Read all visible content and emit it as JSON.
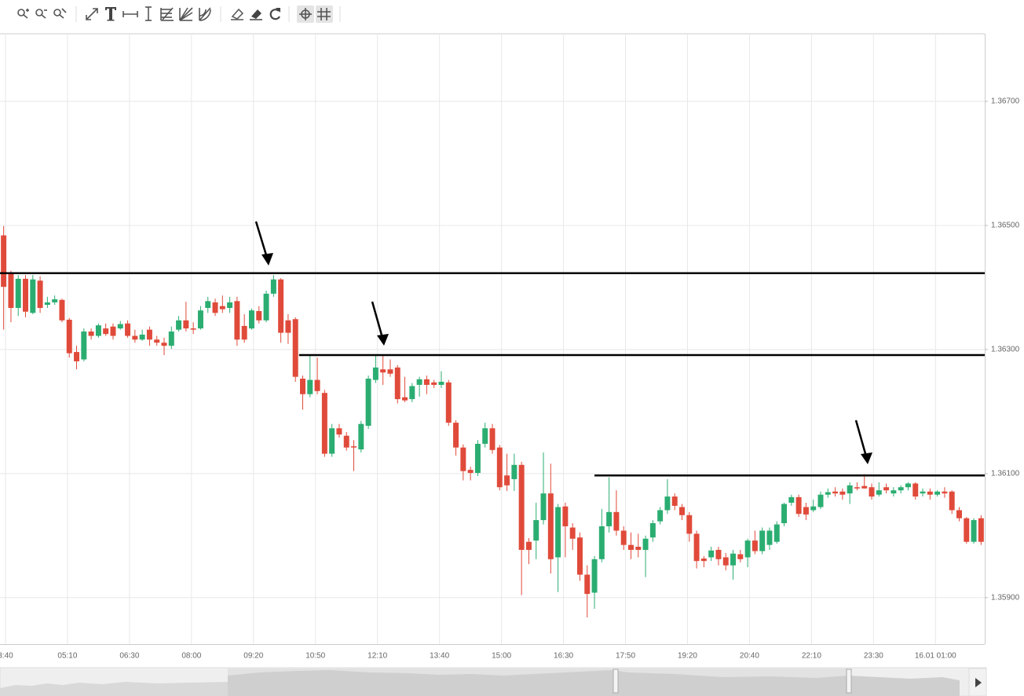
{
  "chart_data": {
    "type": "candlestick",
    "up_color": "#2bad71",
    "down_color": "#e04a3a",
    "grid": true,
    "xlim": [
      -0.5,
      134.5
    ],
    "xticks": [
      {
        "value": 0.25,
        "label": "3:40"
      },
      {
        "value": 8.75,
        "label": "05:10"
      },
      {
        "value": 17.25,
        "label": "06:30"
      },
      {
        "value": 25.75,
        "label": "08:00"
      },
      {
        "value": 34.25,
        "label": "09:20"
      },
      {
        "value": 42.75,
        "label": "10:50"
      },
      {
        "value": 51.25,
        "label": "12:10"
      },
      {
        "value": 59.75,
        "label": "13:40"
      },
      {
        "value": 68.25,
        "label": "15:00"
      },
      {
        "value": 76.75,
        "label": "16:30"
      },
      {
        "value": 85.25,
        "label": "17:50"
      },
      {
        "value": 93.75,
        "label": "19:20"
      },
      {
        "value": 102.25,
        "label": "20:40"
      },
      {
        "value": 110.75,
        "label": "22:10"
      },
      {
        "value": 119.25,
        "label": "23:30"
      },
      {
        "value": 127.75,
        "label": "16.01 01:00"
      }
    ],
    "ylim": [
      1.35825,
      1.36809
    ],
    "yticks": [
      {
        "value": 1.367,
        "label": "1.36700"
      },
      {
        "value": 1.365,
        "label": "1.36500"
      },
      {
        "value": 1.363,
        "label": "1.36300"
      },
      {
        "value": 1.361,
        "label": "1.36100"
      },
      {
        "value": 1.359,
        "label": "1.35900"
      }
    ],
    "open": [
      1.36484,
      1.36423,
      1.36367,
      1.36414,
      1.36359,
      1.36411,
      1.36372,
      1.36376,
      1.3638,
      1.36348,
      1.36296,
      1.36284,
      1.36329,
      1.36322,
      1.36334,
      1.36337,
      1.36334,
      1.36342,
      1.36322,
      1.36316,
      1.36332,
      1.36316,
      1.36311,
      1.36306,
      1.36332,
      1.36347,
      1.36334,
      1.36334,
      1.36367,
      1.36376,
      1.3637,
      1.36367,
      1.36378,
      1.36338,
      1.36334,
      1.36362,
      1.36347,
      1.3639,
      1.36413,
      1.36347,
      1.36349,
      1.36253,
      1.36228,
      1.36251,
      1.3623,
      1.36132,
      1.36173,
      1.36161,
      1.36144,
      1.36139,
      1.36177,
      1.36251,
      1.36268,
      1.36268,
      1.36271,
      1.36223,
      1.3622,
      1.36243,
      1.36252,
      1.36247,
      1.36243,
      1.36247,
      1.36182,
      1.36142,
      1.36106,
      1.36101,
      1.36148,
      1.36173,
      1.36142,
      1.36097,
      1.36091,
      1.36114,
      1.3599,
      1.35992,
      1.36025,
      1.36068,
      1.35965,
      1.36047,
      1.36013,
      1.35997,
      1.35937,
      1.35908,
      1.35962,
      1.36015,
      1.36038,
      1.36008,
      1.35985,
      1.35982,
      1.35977,
      1.35997,
      1.36023,
      1.36041,
      1.36063,
      1.36046,
      1.36033,
      1.36003,
      1.35963,
      1.35965,
      1.35977,
      1.35965,
      1.35952,
      1.3597,
      1.35965,
      1.35992,
      1.35975,
      1.35985,
      1.3599,
      1.3602,
      1.36053,
      1.36062,
      1.36046,
      1.36041,
      1.36046,
      1.36066,
      1.36071,
      1.36071,
      1.36068,
      1.36078,
      1.3608,
      1.36078,
      1.36066,
      1.36078,
      1.36068,
      1.36073,
      1.36078,
      1.36084,
      1.36068,
      1.36071,
      1.36066,
      1.36071,
      1.36071,
      1.36041,
      1.36028,
      1.3599,
      1.36028
    ],
    "high": [
      1.36499,
      1.36427,
      1.3642,
      1.3642,
      1.3642,
      1.36418,
      1.36385,
      1.36387,
      1.36382,
      1.36351,
      1.36306,
      1.36334,
      1.36334,
      1.36342,
      1.36342,
      1.36342,
      1.36346,
      1.36347,
      1.36332,
      1.36332,
      1.36337,
      1.36322,
      1.36319,
      1.36337,
      1.36354,
      1.36377,
      1.36344,
      1.3637,
      1.36385,
      1.36382,
      1.36387,
      1.36385,
      1.36385,
      1.36357,
      1.36366,
      1.3637,
      1.36395,
      1.3642,
      1.36415,
      1.36357,
      1.36352,
      1.36258,
      1.3629,
      1.36287,
      1.36235,
      1.3618,
      1.3618,
      1.36167,
      1.36154,
      1.36185,
      1.36258,
      1.36291,
      1.3629,
      1.36284,
      1.36275,
      1.36256,
      1.36246,
      1.36256,
      1.36258,
      1.36251,
      1.36265,
      1.36251,
      1.36186,
      1.36147,
      1.36111,
      1.36154,
      1.36182,
      1.3618,
      1.36146,
      1.36132,
      1.36132,
      1.36119,
      1.35996,
      1.36053,
      1.36134,
      1.36116,
      1.36051,
      1.36053,
      1.3602,
      1.36005,
      1.35952,
      1.35967,
      1.36043,
      1.36094,
      1.36073,
      1.36015,
      1.36005,
      1.36003,
      1.36,
      1.36025,
      1.36046,
      1.36091,
      1.36068,
      1.36051,
      1.36038,
      1.36008,
      1.35967,
      1.35982,
      1.35982,
      1.35972,
      1.35977,
      1.35977,
      1.35995,
      1.36008,
      1.36013,
      1.36013,
      1.36023,
      1.36053,
      1.36066,
      1.36066,
      1.36053,
      1.36058,
      1.36071,
      1.36076,
      1.36078,
      1.36076,
      1.36086,
      1.36086,
      1.36099,
      1.36084,
      1.36086,
      1.36084,
      1.36078,
      1.36081,
      1.36086,
      1.36086,
      1.36076,
      1.36076,
      1.36073,
      1.36078,
      1.36073,
      1.36046,
      1.3603,
      1.36028,
      1.36033
    ],
    "low": [
      1.36332,
      1.36344,
      1.36354,
      1.36352,
      1.36357,
      1.36359,
      1.36367,
      1.36372,
      1.36344,
      1.36287,
      1.36268,
      1.36281,
      1.36316,
      1.36319,
      1.36322,
      1.36316,
      1.36332,
      1.36319,
      1.36311,
      1.36314,
      1.36306,
      1.36306,
      1.36291,
      1.36301,
      1.36329,
      1.36329,
      1.36325,
      1.36332,
      1.36359,
      1.36354,
      1.36359,
      1.36359,
      1.36306,
      1.36311,
      1.36332,
      1.36342,
      1.36344,
      1.36385,
      1.36311,
      1.36309,
      1.36248,
      1.36203,
      1.36223,
      1.36228,
      1.36127,
      1.36127,
      1.36158,
      1.36137,
      1.36104,
      1.36134,
      1.36172,
      1.36246,
      1.36243,
      1.36256,
      1.36213,
      1.36215,
      1.36215,
      1.36224,
      1.36228,
      1.36238,
      1.36238,
      1.36177,
      1.36129,
      1.36089,
      1.36089,
      1.36096,
      1.36142,
      1.36132,
      1.36073,
      1.36072,
      1.36072,
      1.35904,
      1.35954,
      1.35962,
      1.36018,
      1.35939,
      1.35909,
      1.35965,
      1.35977,
      1.35927,
      1.35868,
      1.35882,
      1.35957,
      1.36005,
      1.36,
      1.35977,
      1.35962,
      1.35965,
      1.35933,
      1.3599,
      1.36018,
      1.36035,
      1.36041,
      1.36025,
      1.3599,
      1.35947,
      1.35949,
      1.35959,
      1.35952,
      1.35944,
      1.35929,
      1.35957,
      1.35949,
      1.3597,
      1.3597,
      1.35977,
      1.35987,
      1.36015,
      1.36048,
      1.3603,
      1.36025,
      1.36038,
      1.36043,
      1.36061,
      1.36063,
      1.36058,
      1.36051,
      1.36073,
      1.36076,
      1.36058,
      1.36063,
      1.36068,
      1.36063,
      1.36068,
      1.36073,
      1.36058,
      1.36063,
      1.36058,
      1.36063,
      1.36061,
      1.36035,
      1.36023,
      1.35987,
      1.35987,
      1.35985
    ],
    "close": [
      1.36401,
      1.36367,
      1.36414,
      1.36361,
      1.36413,
      1.36367,
      1.36376,
      1.36381,
      1.36347,
      1.36294,
      1.36281,
      1.36329,
      1.36322,
      1.36339,
      1.36325,
      1.36322,
      1.36341,
      1.36322,
      1.36316,
      1.36324,
      1.36316,
      1.36311,
      1.36306,
      1.36329,
      1.36347,
      1.36334,
      1.36332,
      1.36363,
      1.36378,
      1.36359,
      1.36365,
      1.36376,
      1.36316,
      1.36316,
      1.36363,
      1.36347,
      1.3639,
      1.36413,
      1.36327,
      1.36327,
      1.36256,
      1.36228,
      1.36251,
      1.36233,
      1.36132,
      1.36173,
      1.36163,
      1.36142,
      1.36142,
      1.3618,
      1.36253,
      1.36271,
      1.36263,
      1.36261,
      1.3622,
      1.36218,
      1.36241,
      1.36252,
      1.36243,
      1.36243,
      1.36248,
      1.36182,
      1.36142,
      1.36104,
      1.36101,
      1.36148,
      1.36173,
      1.36138,
      1.36078,
      1.36081,
      1.36114,
      1.35977,
      1.35977,
      1.36025,
      1.36068,
      1.35962,
      1.36046,
      1.36015,
      1.35995,
      1.35937,
      1.35906,
      1.35962,
      1.36015,
      1.36038,
      1.36008,
      1.35985,
      1.35977,
      1.35977,
      1.35995,
      1.3602,
      1.36041,
      1.36063,
      1.36048,
      1.36033,
      1.36003,
      1.35959,
      1.35959,
      1.35976,
      1.35962,
      1.35952,
      1.35971,
      1.35962,
      1.35992,
      1.35975,
      1.36008,
      1.36008,
      1.36018,
      1.36051,
      1.36062,
      1.36035,
      1.36034,
      1.36047,
      1.36066,
      1.3607,
      1.36068,
      1.36066,
      1.36081,
      1.36076,
      1.36076,
      1.36063,
      1.36073,
      1.36073,
      1.36073,
      1.36078,
      1.36084,
      1.36063,
      1.36071,
      1.36066,
      1.36071,
      1.36068,
      1.36041,
      1.36028,
      1.3599,
      1.36025,
      1.3599
    ],
    "hlines": [
      {
        "y": 1.36423,
        "x_start": -0.5
      },
      {
        "y": 1.36291,
        "x_start": 40.5
      },
      {
        "y": 1.36097,
        "x_start": 81
      }
    ],
    "hline_color": "#000000"
  }
}
